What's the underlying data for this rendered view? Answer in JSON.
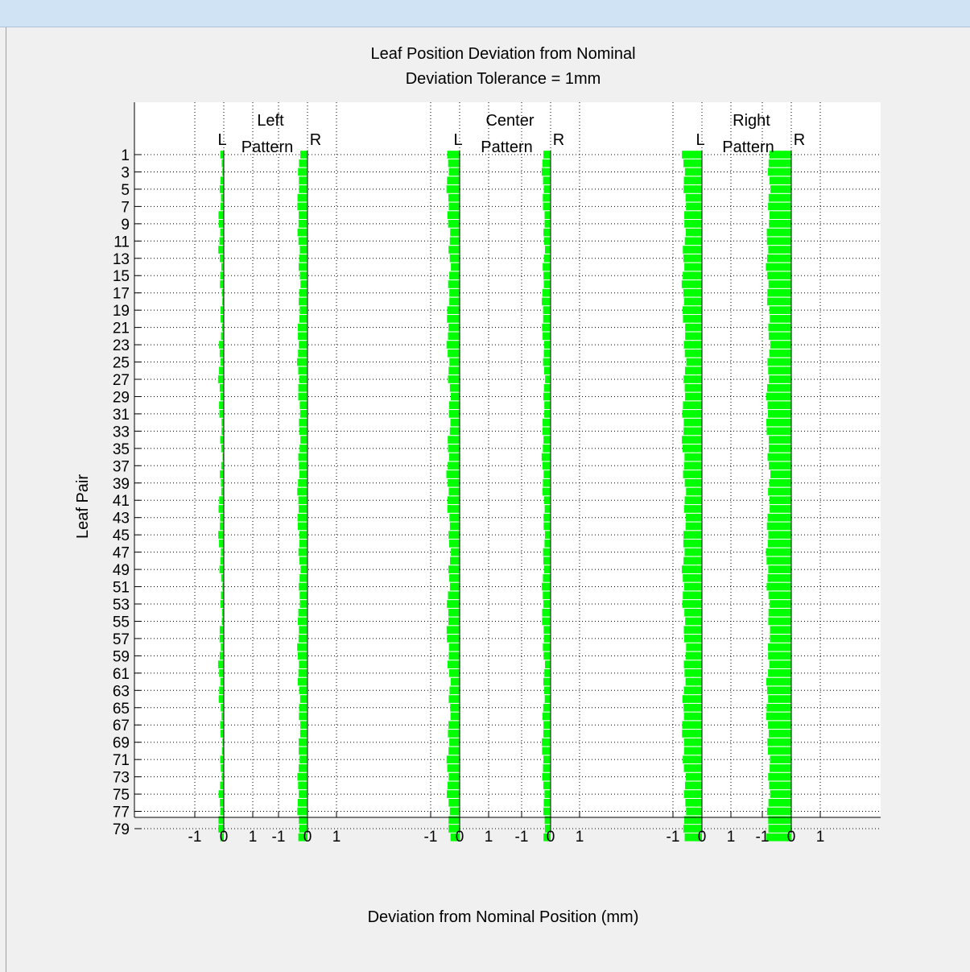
{
  "window": {
    "title": ""
  },
  "chart_data": {
    "type": "bar",
    "title": [
      "Leaf Position Deviation from Nominal",
      "Deviation Tolerance = 1mm"
    ],
    "xlabel": "Deviation from Nominal Position (mm)",
    "ylabel": "Leaf Pair",
    "y_ticks": [
      1,
      3,
      5,
      7,
      9,
      11,
      13,
      15,
      17,
      19,
      21,
      23,
      25,
      27,
      29,
      31,
      33,
      35,
      37,
      39,
      41,
      43,
      45,
      47,
      49,
      51,
      53,
      55,
      57,
      59,
      61,
      63,
      65,
      67,
      69,
      71,
      73,
      75,
      77,
      79
    ],
    "x_tick_labels": [
      "-1",
      "0",
      "1"
    ],
    "grid": true,
    "bar_color": "#00ff00",
    "leaf_pairs": 80,
    "panels": [
      {
        "name": "Left",
        "subtitle": "Pattern",
        "left_label": "L",
        "right_label": "R",
        "L_base": -0.12,
        "L_amp": 0.08,
        "R_base": -0.3,
        "R_amp": 0.06
      },
      {
        "name": "Center",
        "subtitle": "Pattern",
        "left_label": "L",
        "right_label": "R",
        "L_base": -0.38,
        "L_amp": 0.08,
        "R_base": -0.25,
        "R_amp": 0.06
      },
      {
        "name": "Right",
        "subtitle": "Pattern",
        "left_label": "L",
        "right_label": "R",
        "L_base": -0.62,
        "L_amp": 0.08,
        "R_base": -0.8,
        "R_amp": 0.08
      }
    ]
  }
}
